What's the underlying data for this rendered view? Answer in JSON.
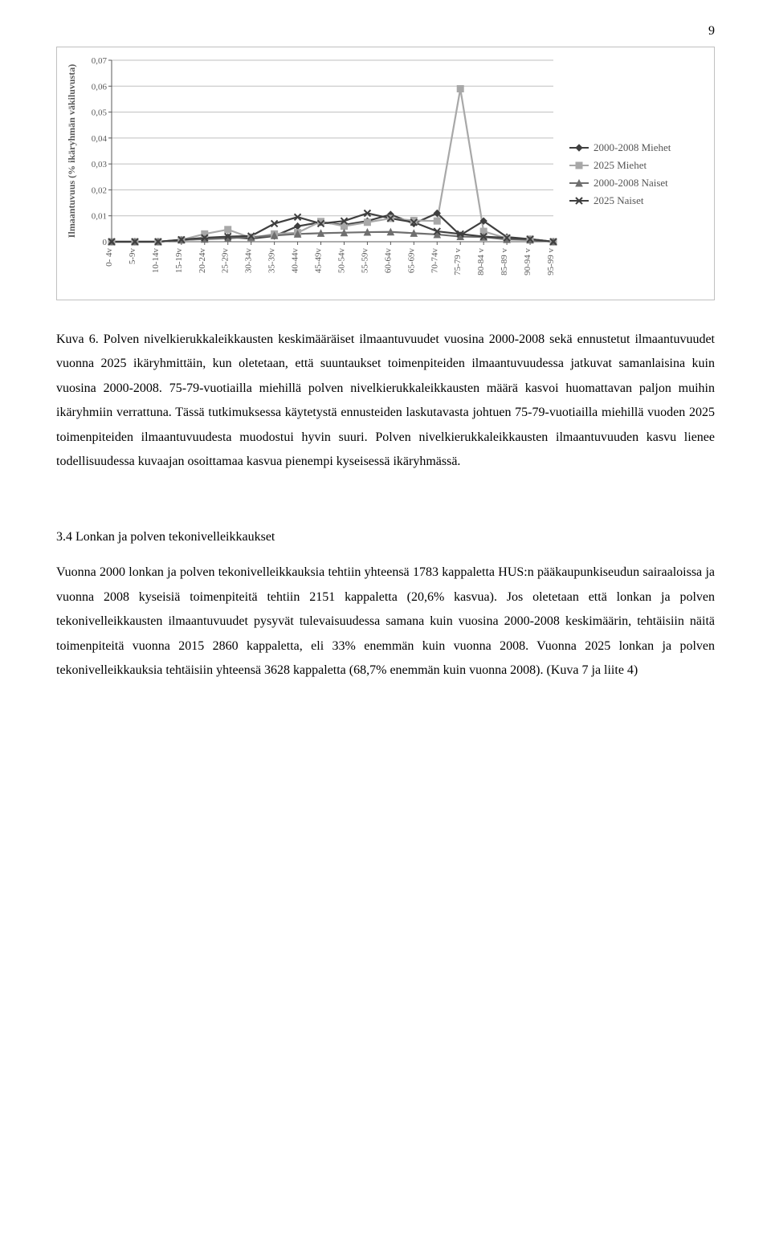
{
  "page_number": "9",
  "chart": {
    "type": "line",
    "ylabel": "Ilmaantuvuus (% ikäryhmän väkiluvusta)",
    "ylabel_fontsize": 12,
    "ylabel_weight": "bold",
    "ylabel_color": "#5a5a5a",
    "background_color": "#ffffff",
    "plot_bg": "#ffffff",
    "border_color": "#c0c0c0",
    "grid_color": "#bfbfbf",
    "grid_on": true,
    "xlim": [
      0,
      19
    ],
    "ylim": [
      0,
      0.07
    ],
    "yticks": [
      0,
      0.01,
      0.02,
      0.03,
      0.04,
      0.05,
      0.06,
      0.07
    ],
    "categories": [
      "0- 4v",
      "5-9v",
      "10-14v",
      "15-19v",
      "20-24v",
      "25-29v",
      "30-34v",
      "35-39v",
      "40-44v",
      "45-49v",
      "50-54v",
      "55-59v",
      "60-64v",
      "65-69v",
      "70-74v",
      "75-79 v",
      "80-84 v",
      "85-89 v",
      "90-94 v",
      "95-99 v"
    ],
    "tick_fontsize": 11,
    "tick_color": "#5a5a5a",
    "tick_rotation": -90,
    "line_width": 2.2,
    "marker_size": 6,
    "series": [
      {
        "name": "2000-2008 Miehet",
        "color": "#3f3f3f",
        "marker": "diamond",
        "values": [
          0,
          0,
          0,
          0.0006,
          0.0012,
          0.0018,
          0.0012,
          0.0022,
          0.006,
          0.0075,
          0.0065,
          0.008,
          0.0105,
          0.007,
          0.011,
          0.0025,
          0.008,
          0.0018,
          0.001,
          0
        ]
      },
      {
        "name": "2025 Miehet",
        "color": "#a8a8a8",
        "marker": "square",
        "values": [
          0,
          0,
          0,
          0.0007,
          0.003,
          0.0047,
          0.0015,
          0.003,
          0.0035,
          0.0078,
          0.006,
          0.0075,
          0.009,
          0.0082,
          0.008,
          0.059,
          0.004,
          0.0013,
          0.001,
          0
        ]
      },
      {
        "name": "2000-2008 Naiset",
        "color": "#6f6f6f",
        "marker": "triangle",
        "values": [
          0,
          0,
          0,
          0.0007,
          0.001,
          0.0013,
          0.0018,
          0.0024,
          0.003,
          0.0033,
          0.0035,
          0.0037,
          0.0038,
          0.0033,
          0.0028,
          0.002,
          0.0018,
          0.0009,
          0.0007,
          0
        ]
      },
      {
        "name": "2025 Naiset",
        "color": "#3f3f3f",
        "marker": "x",
        "values": [
          0,
          0,
          0,
          0.0008,
          0.0015,
          0.002,
          0.0022,
          0.007,
          0.0095,
          0.007,
          0.008,
          0.011,
          0.009,
          0.0075,
          0.004,
          0.003,
          0.002,
          0.0015,
          0.001,
          0
        ]
      }
    ],
    "legend": {
      "position": "right",
      "fontsize": 13,
      "color": "#555555"
    }
  },
  "caption_paragraph": "Kuva 6. Polven nivelkierukkaleikkausten keskimääräiset ilmaantuvuudet vuosina 2000-2008 sekä ennustetut ilmaantuvuudet vuonna 2025 ikäryhmittäin, kun oletetaan, että suuntaukset toimenpiteiden ilmaantuvuudessa jatkuvat samanlaisina kuin vuosina 2000-2008. 75-79-vuotiailla miehillä polven nivelkierukkaleikkausten määrä kasvoi huomattavan paljon muihin ikäryhmiin verrattuna. Tässä tutkimuksessa käytetystä ennusteiden laskutavasta johtuen 75-79-vuotiailla miehillä vuoden 2025 toimenpiteiden ilmaantuvuudesta muodostui hyvin suuri. Polven nivelkierukkaleikkausten ilmaantuvuuden kasvu lienee todellisuudessa kuvaajan osoittamaa kasvua pienempi kyseisessä ikäryhmässä.",
  "section_heading": "3.4 Lonkan ja polven tekonivelleikkaukset",
  "section_paragraph": "Vuonna 2000 lonkan ja polven tekonivelleikkauksia tehtiin yhteensä 1783 kappaletta HUS:n pääkaupunkiseudun sairaaloissa ja vuonna 2008 kyseisiä toimenpiteitä tehtiin 2151 kappaletta (20,6% kasvua). Jos oletetaan että lonkan ja polven tekonivelleikkausten ilmaantuvuudet pysyvät tulevaisuudessa samana kuin vuosina 2000-2008 keskimäärin, tehtäisiin näitä toimenpiteitä vuonna 2015 2860 kappaletta, eli 33% enemmän kuin vuonna 2008. Vuonna 2025 lonkan ja polven tekonivelleikkauksia tehtäisiin yhteensä 3628 kappaletta (68,7% enemmän kuin vuonna 2008). (Kuva 7 ja liite 4)"
}
